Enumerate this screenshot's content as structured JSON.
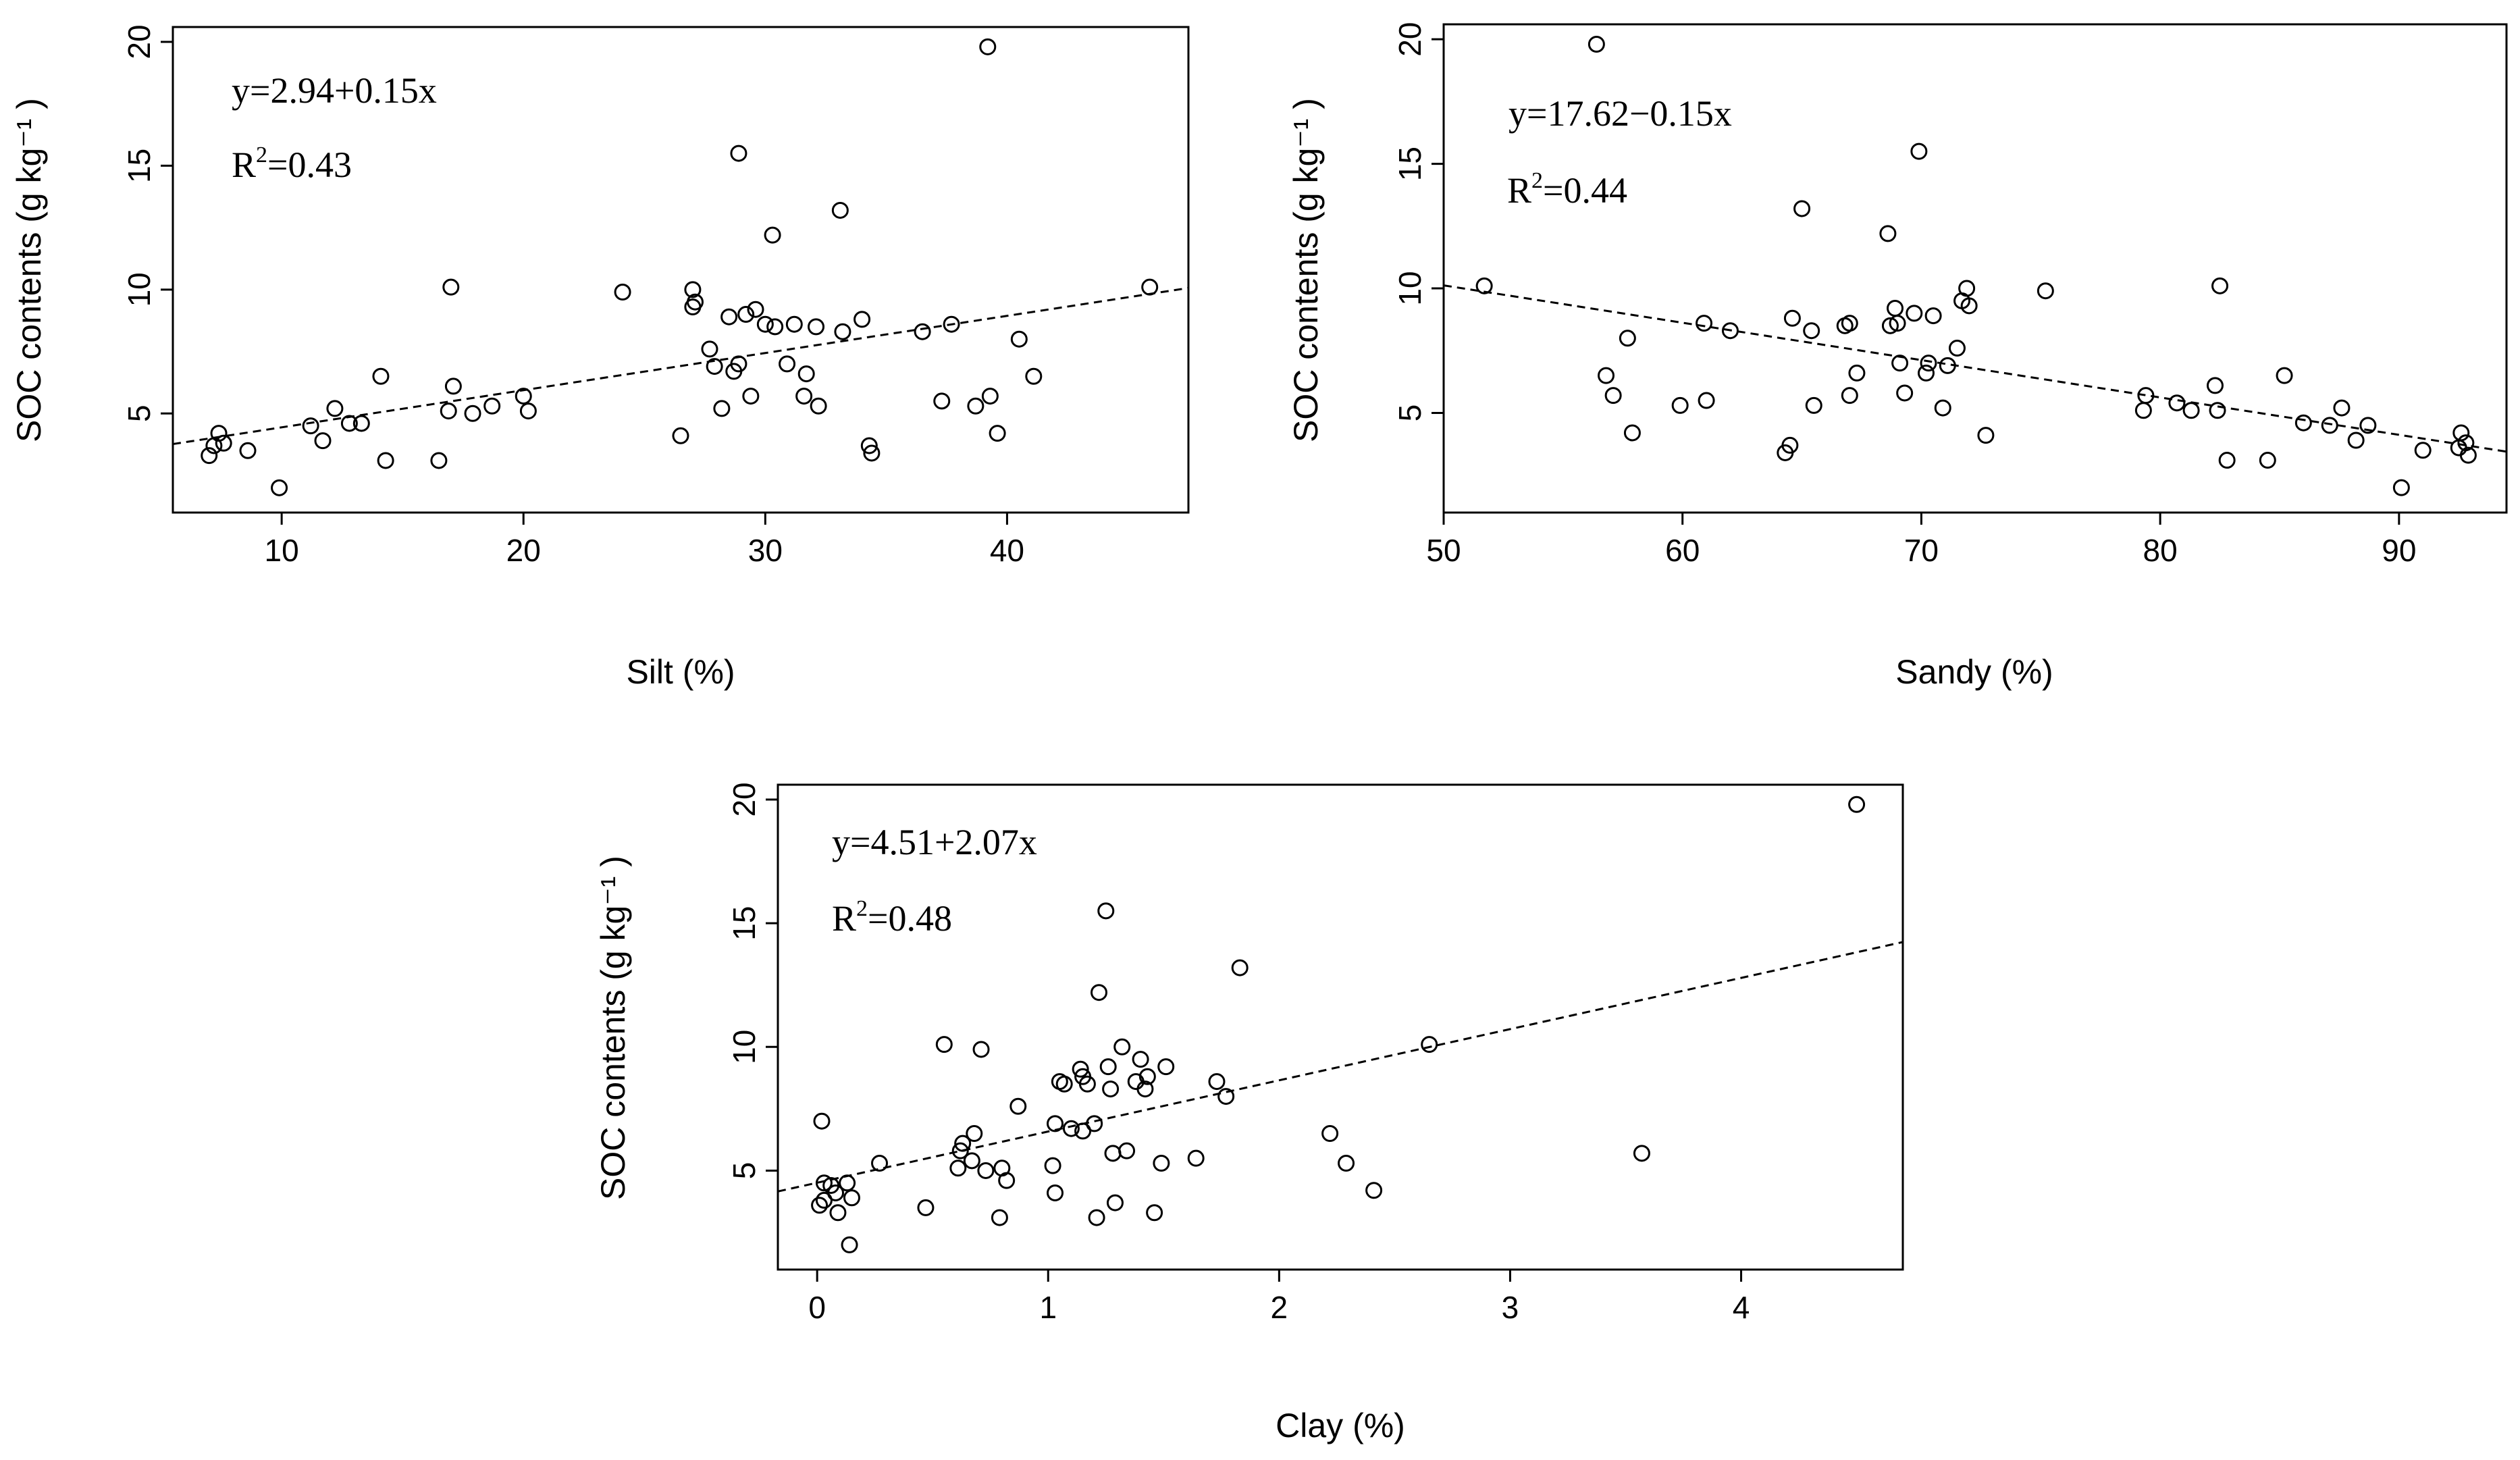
{
  "chart_data": [
    {
      "type": "scatter",
      "id": "silt",
      "xlabel": "Silt (%)",
      "ylabel": "SOC contents (g kg⁻¹ )",
      "xlim": [
        5.5,
        47.5
      ],
      "ylim": [
        1,
        20.6
      ],
      "xticks": [
        10,
        20,
        30,
        40
      ],
      "yticks": [
        5,
        10,
        15,
        20
      ],
      "equation": "y=2.94+0.15x",
      "r2_prefix": "R",
      "r2_sup": "2",
      "r2_value": "=0.43",
      "fit": {
        "intercept": 2.94,
        "slope": 0.15
      },
      "points": [
        [
          7.0,
          3.3
        ],
        [
          7.2,
          3.7
        ],
        [
          7.4,
          4.2
        ],
        [
          7.6,
          3.8
        ],
        [
          8.6,
          3.5
        ],
        [
          9.9,
          2.0
        ],
        [
          11.2,
          4.5
        ],
        [
          11.7,
          3.9
        ],
        [
          12.2,
          5.2
        ],
        [
          12.8,
          4.6
        ],
        [
          13.3,
          4.6
        ],
        [
          14.1,
          6.5
        ],
        [
          14.3,
          3.1
        ],
        [
          16.5,
          3.1
        ],
        [
          16.9,
          5.1
        ],
        [
          17.0,
          10.1
        ],
        [
          17.1,
          6.1
        ],
        [
          17.9,
          5.0
        ],
        [
          18.7,
          5.3
        ],
        [
          20.0,
          5.7
        ],
        [
          20.2,
          5.1
        ],
        [
          24.1,
          9.9
        ],
        [
          26.5,
          4.1
        ],
        [
          27.0,
          10.0
        ],
        [
          27.0,
          9.3
        ],
        [
          27.1,
          9.5
        ],
        [
          27.7,
          7.6
        ],
        [
          27.9,
          6.9
        ],
        [
          28.2,
          5.2
        ],
        [
          28.5,
          8.9
        ],
        [
          28.7,
          6.7
        ],
        [
          28.9,
          7.0
        ],
        [
          28.9,
          15.5
        ],
        [
          29.2,
          9.0
        ],
        [
          29.4,
          5.7
        ],
        [
          29.6,
          9.2
        ],
        [
          30.0,
          8.6
        ],
        [
          30.3,
          12.2
        ],
        [
          30.4,
          8.5
        ],
        [
          30.9,
          7.0
        ],
        [
          31.2,
          8.6
        ],
        [
          31.6,
          5.7
        ],
        [
          31.7,
          6.6
        ],
        [
          32.1,
          8.5
        ],
        [
          32.2,
          5.3
        ],
        [
          33.1,
          13.2
        ],
        [
          33.2,
          8.3
        ],
        [
          34.0,
          8.8
        ],
        [
          34.3,
          3.7
        ],
        [
          34.4,
          3.4
        ],
        [
          36.5,
          8.3
        ],
        [
          37.3,
          5.5
        ],
        [
          37.7,
          8.6
        ],
        [
          38.7,
          5.3
        ],
        [
          39.2,
          19.8
        ],
        [
          39.3,
          5.7
        ],
        [
          39.6,
          4.2
        ],
        [
          40.5,
          8.0
        ],
        [
          41.1,
          6.5
        ],
        [
          45.9,
          10.1
        ]
      ]
    },
    {
      "type": "scatter",
      "id": "sandy",
      "xlabel": "Sandy (%)",
      "ylabel": "SOC contents (g kg⁻¹ )",
      "xlim": [
        50,
        94.5
      ],
      "ylim": [
        1,
        20.6
      ],
      "xticks": [
        50,
        60,
        70,
        80,
        90
      ],
      "yticks": [
        5,
        10,
        15,
        20
      ],
      "equation": "y=17.62−0.15x",
      "r2_prefix": "R",
      "r2_sup": "2",
      "r2_value": "=0.44",
      "fit": {
        "intercept": 17.62,
        "slope": -0.15
      },
      "points": [
        [
          51.7,
          10.1
        ],
        [
          56.4,
          19.8
        ],
        [
          56.8,
          6.5
        ],
        [
          57.1,
          5.7
        ],
        [
          57.7,
          8.0
        ],
        [
          57.9,
          4.2
        ],
        [
          59.9,
          5.3
        ],
        [
          60.9,
          8.6
        ],
        [
          61.0,
          5.5
        ],
        [
          62.0,
          8.3
        ],
        [
          64.3,
          3.4
        ],
        [
          64.5,
          3.7
        ],
        [
          64.6,
          8.8
        ],
        [
          65.0,
          13.2
        ],
        [
          65.4,
          8.3
        ],
        [
          65.5,
          5.3
        ],
        [
          66.8,
          8.5
        ],
        [
          67.0,
          5.7
        ],
        [
          67.0,
          8.6
        ],
        [
          67.3,
          6.6
        ],
        [
          68.6,
          12.2
        ],
        [
          68.7,
          8.5
        ],
        [
          68.9,
          9.2
        ],
        [
          69.0,
          8.6
        ],
        [
          69.1,
          7.0
        ],
        [
          69.3,
          5.8
        ],
        [
          69.7,
          9.0
        ],
        [
          69.9,
          15.5
        ],
        [
          70.2,
          6.6
        ],
        [
          70.3,
          7.0
        ],
        [
          70.5,
          8.9
        ],
        [
          70.9,
          5.2
        ],
        [
          71.1,
          6.9
        ],
        [
          71.5,
          7.6
        ],
        [
          71.7,
          9.5
        ],
        [
          71.9,
          10.0
        ],
        [
          72.0,
          9.3
        ],
        [
          72.7,
          4.1
        ],
        [
          75.2,
          9.9
        ],
        [
          79.3,
          5.1
        ],
        [
          79.4,
          5.7
        ],
        [
          80.7,
          5.4
        ],
        [
          81.3,
          5.1
        ],
        [
          82.3,
          6.1
        ],
        [
          82.4,
          5.1
        ],
        [
          82.5,
          10.1
        ],
        [
          82.8,
          3.1
        ],
        [
          84.5,
          3.1
        ],
        [
          85.2,
          6.5
        ],
        [
          86.0,
          4.6
        ],
        [
          87.1,
          4.5
        ],
        [
          87.6,
          5.2
        ],
        [
          88.2,
          3.9
        ],
        [
          88.7,
          4.5
        ],
        [
          90.1,
          2.0
        ],
        [
          91.0,
          3.5
        ],
        [
          92.5,
          3.6
        ],
        [
          92.6,
          4.2
        ],
        [
          92.8,
          3.8
        ],
        [
          92.9,
          3.3
        ]
      ]
    },
    {
      "type": "scatter",
      "id": "clay",
      "xlabel": "Clay (%)",
      "ylabel": "SOC contents (g kg⁻¹ )",
      "xlim": [
        -0.17,
        4.7
      ],
      "ylim": [
        1,
        20.6
      ],
      "xticks": [
        0,
        1,
        2,
        3,
        4
      ],
      "yticks": [
        5,
        10,
        15,
        20
      ],
      "equation": "y=4.51+2.07x",
      "r2_prefix": "R",
      "r2_sup": "2",
      "r2_value": "=0.48",
      "fit": {
        "intercept": 4.51,
        "slope": 2.07
      },
      "points": [
        [
          0.01,
          3.6
        ],
        [
          0.02,
          7.0
        ],
        [
          0.03,
          3.8
        ],
        [
          0.03,
          4.5
        ],
        [
          0.06,
          4.4
        ],
        [
          0.08,
          4.1
        ],
        [
          0.09,
          3.3
        ],
        [
          0.13,
          4.5
        ],
        [
          0.14,
          2.0
        ],
        [
          0.15,
          3.9
        ],
        [
          0.27,
          5.3
        ],
        [
          0.47,
          3.5
        ],
        [
          0.55,
          10.1
        ],
        [
          0.61,
          5.1
        ],
        [
          0.62,
          5.8
        ],
        [
          0.63,
          6.1
        ],
        [
          0.67,
          5.4
        ],
        [
          0.68,
          6.5
        ],
        [
          0.71,
          9.9
        ],
        [
          0.73,
          5.0
        ],
        [
          0.79,
          3.1
        ],
        [
          0.8,
          5.1
        ],
        [
          0.82,
          4.6
        ],
        [
          0.87,
          7.6
        ],
        [
          1.02,
          5.2
        ],
        [
          1.03,
          6.9
        ],
        [
          1.03,
          4.1
        ],
        [
          1.05,
          8.6
        ],
        [
          1.07,
          8.5
        ],
        [
          1.1,
          6.7
        ],
        [
          1.14,
          9.1
        ],
        [
          1.15,
          6.6
        ],
        [
          1.15,
          8.8
        ],
        [
          1.17,
          8.5
        ],
        [
          1.2,
          6.9
        ],
        [
          1.21,
          3.1
        ],
        [
          1.22,
          12.2
        ],
        [
          1.25,
          15.5
        ],
        [
          1.26,
          9.2
        ],
        [
          1.27,
          8.3
        ],
        [
          1.28,
          5.7
        ],
        [
          1.29,
          3.7
        ],
        [
          1.32,
          10.0
        ],
        [
          1.34,
          5.8
        ],
        [
          1.38,
          8.6
        ],
        [
          1.4,
          9.5
        ],
        [
          1.42,
          8.3
        ],
        [
          1.43,
          8.8
        ],
        [
          1.46,
          3.3
        ],
        [
          1.49,
          5.3
        ],
        [
          1.51,
          9.2
        ],
        [
          1.64,
          5.5
        ],
        [
          1.73,
          8.6
        ],
        [
          1.77,
          8.0
        ],
        [
          1.83,
          13.2
        ],
        [
          2.22,
          6.5
        ],
        [
          2.29,
          5.3
        ],
        [
          2.41,
          4.2
        ],
        [
          2.65,
          10.1
        ],
        [
          3.57,
          5.7
        ],
        [
          4.5,
          19.8
        ]
      ]
    }
  ]
}
